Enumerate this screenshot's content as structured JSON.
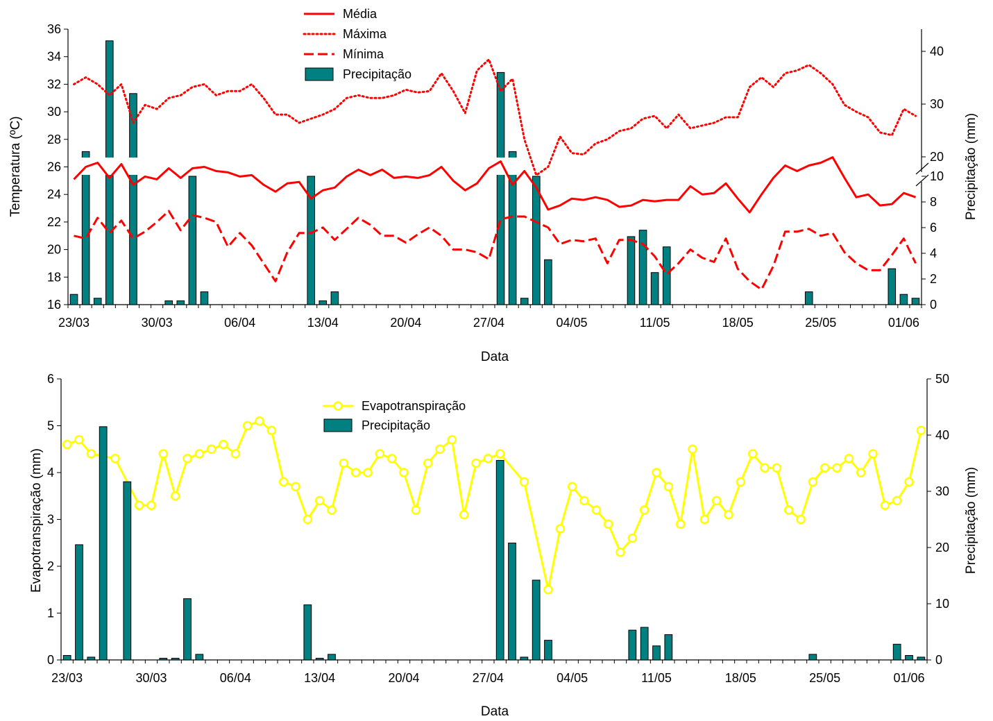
{
  "chart_data": [
    {
      "type": "line+bar",
      "xlabel": "Data",
      "ylabel": "Temperatura (ºC)",
      "y2label": "Precipitação (mm)",
      "ylim": [
        16,
        36
      ],
      "yticks": [
        "16",
        "18",
        "20",
        "22",
        "24",
        "26",
        "28",
        "30",
        "32",
        "34",
        "36"
      ],
      "y2_break": {
        "lower": [
          0,
          10
        ],
        "upper": [
          20,
          45
        ]
      },
      "y2ticks": [
        "0",
        "2",
        "4",
        "6",
        "8",
        "10",
        "20",
        "30",
        "40"
      ],
      "xtick_labels": [
        "23/03",
        "30/03",
        "06/04",
        "13/04",
        "20/04",
        "27/04",
        "04/05",
        "11/05",
        "18/05",
        "25/05",
        "01/06"
      ],
      "days": 72,
      "legend_position": "top-center",
      "series": [
        {
          "name": "Média",
          "style": "solid",
          "color": "#ff0000",
          "values": [
            25.1,
            26.0,
            26.3,
            25.2,
            26.2,
            24.7,
            25.3,
            25.1,
            25.9,
            25.2,
            25.9,
            26.0,
            25.7,
            25.6,
            25.3,
            25.4,
            24.7,
            24.2,
            24.8,
            24.9,
            23.7,
            24.3,
            24.5,
            25.3,
            25.8,
            25.4,
            25.8,
            25.2,
            25.3,
            25.2,
            25.4,
            26.0,
            25.0,
            24.3,
            24.8,
            25.9,
            26.4,
            24.7,
            25.7,
            24.5,
            22.9,
            23.2,
            23.7,
            23.6,
            23.8,
            23.6,
            23.1,
            23.2,
            23.6,
            23.5,
            23.6,
            23.6,
            24.6,
            24.0,
            24.1,
            24.8,
            23.7,
            22.7,
            24.0,
            25.2,
            26.1,
            25.7,
            26.1,
            26.3,
            26.7,
            25.2,
            23.8,
            24.0,
            23.2,
            23.3,
            24.1,
            23.8
          ]
        },
        {
          "name": "Máxima",
          "style": "dotted",
          "color": "#ff0000",
          "values": [
            32.0,
            32.5,
            32.0,
            31.2,
            32.0,
            29.2,
            30.5,
            30.2,
            31.0,
            31.2,
            31.8,
            32.0,
            31.2,
            31.5,
            31.5,
            32.0,
            31.0,
            29.8,
            29.8,
            29.2,
            29.5,
            29.8,
            30.2,
            31.0,
            31.2,
            31.0,
            31.0,
            31.2,
            31.6,
            31.4,
            31.5,
            32.8,
            31.5,
            29.9,
            33.0,
            33.8,
            31.5,
            32.4,
            28.0,
            25.4,
            26.0,
            28.2,
            27.0,
            26.9,
            27.7,
            28.0,
            28.6,
            28.8,
            29.5,
            29.7,
            28.8,
            29.8,
            28.8,
            29.0,
            29.2,
            29.6,
            29.6,
            31.8,
            32.5,
            31.8,
            32.8,
            33.0,
            33.4,
            32.8,
            32.0,
            30.5,
            30.0,
            29.6,
            28.5,
            28.3,
            30.2,
            29.7
          ]
        },
        {
          "name": "Mínima",
          "style": "dashed",
          "color": "#ff0000",
          "values": [
            21.0,
            20.8,
            22.3,
            21.2,
            22.1,
            20.8,
            21.3,
            22.0,
            22.8,
            21.4,
            22.5,
            22.3,
            22.0,
            20.2,
            21.2,
            20.3,
            19.0,
            17.7,
            19.8,
            21.2,
            21.2,
            21.6,
            20.7,
            21.5,
            22.3,
            21.8,
            21.0,
            21.0,
            20.5,
            21.1,
            21.6,
            21.0,
            20.0,
            20.0,
            19.8,
            19.3,
            22.2,
            22.4,
            22.4,
            22.0,
            21.6,
            20.4,
            20.7,
            20.6,
            20.8,
            19.0,
            20.7,
            20.7,
            20.4,
            19.5,
            18.2,
            19.0,
            20.0,
            19.4,
            19.1,
            20.8,
            18.6,
            17.7,
            17.1,
            18.8,
            21.3,
            21.3,
            21.5,
            21.0,
            21.2,
            19.8,
            19.0,
            18.5,
            18.5,
            19.6,
            20.8,
            19.0
          ]
        }
      ],
      "bar_series": {
        "name": "Precipitação",
        "color": "#008080",
        "values": [
          0.8,
          21.0,
          0.5,
          42.0,
          0.0,
          32.0,
          0.0,
          0.0,
          0.3,
          0.3,
          10.0,
          1.0,
          0,
          0,
          0,
          0,
          0,
          0,
          0,
          0,
          10.0,
          0.3,
          1.0,
          0,
          0,
          0,
          0,
          0,
          0,
          0,
          0,
          0,
          0,
          0,
          0,
          0,
          36.0,
          21.0,
          0.5,
          10.0,
          3.5,
          0,
          0,
          0,
          0,
          0,
          0,
          5.3,
          5.8,
          2.5,
          4.5,
          0,
          0,
          0,
          0,
          0,
          0,
          0,
          0,
          0,
          0,
          0,
          1.0,
          0,
          0,
          0,
          0,
          0,
          0,
          2.8,
          0.8,
          0.5
        ]
      }
    },
    {
      "type": "line+bar",
      "xlabel": "Data",
      "ylabel": "Evapotranspiração (mm)",
      "y2label": "Precipitação (mm)",
      "ylim": [
        0,
        6
      ],
      "y2lim": [
        0,
        50
      ],
      "yticks": [
        "0",
        "1",
        "2",
        "3",
        "4",
        "5",
        "6"
      ],
      "y2ticks": [
        "0",
        "10",
        "20",
        "30",
        "40",
        "50"
      ],
      "xtick_labels": [
        "23/03",
        "30/03",
        "06/04",
        "13/04",
        "20/04",
        "27/04",
        "04/05",
        "11/05",
        "18/05",
        "25/05",
        "01/06"
      ],
      "days": 72,
      "legend_position": "top-left",
      "series": [
        {
          "name": "Evapotranspiração",
          "color": "#ffff00",
          "marker": "circle",
          "values": [
            4.6,
            4.7,
            4.4,
            null,
            4.3,
            null,
            3.3,
            3.3,
            4.4,
            3.5,
            4.3,
            4.4,
            4.5,
            4.6,
            4.4,
            5.0,
            5.1,
            4.9,
            3.8,
            3.7,
            3.0,
            3.4,
            3.2,
            4.2,
            4.0,
            4.0,
            4.4,
            4.3,
            4.0,
            3.2,
            4.2,
            4.5,
            4.7,
            3.1,
            4.2,
            4.3,
            4.4,
            null,
            3.8,
            null,
            1.5,
            2.8,
            3.7,
            3.4,
            3.2,
            2.9,
            2.3,
            2.6,
            3.2,
            4.0,
            3.7,
            2.9,
            4.5,
            3.0,
            3.4,
            3.1,
            3.8,
            4.4,
            4.1,
            4.1,
            3.2,
            3.0,
            3.8,
            4.1,
            4.1,
            4.3,
            4.0,
            4.4,
            3.3,
            3.4,
            3.8,
            4.9
          ]
        }
      ],
      "bar_series": {
        "name": "Precipitação",
        "color": "#008080",
        "values": [
          0.8,
          20.5,
          0.5,
          41.5,
          0.0,
          31.7,
          0.0,
          0.0,
          0.3,
          0.3,
          10.9,
          1.0,
          0,
          0,
          0,
          0,
          0,
          0,
          0,
          0,
          9.8,
          0.3,
          1.0,
          0,
          0,
          0,
          0,
          0,
          0,
          0,
          0,
          0,
          0,
          0,
          0,
          0,
          35.5,
          20.8,
          0.5,
          14.2,
          3.5,
          0,
          0,
          0,
          0,
          0,
          0,
          5.3,
          5.8,
          2.5,
          4.5,
          0,
          0,
          0,
          0,
          0,
          0,
          0,
          0,
          0,
          0,
          0,
          1.0,
          0,
          0,
          0,
          0,
          0,
          0,
          2.8,
          0.8,
          0.5
        ]
      }
    }
  ]
}
